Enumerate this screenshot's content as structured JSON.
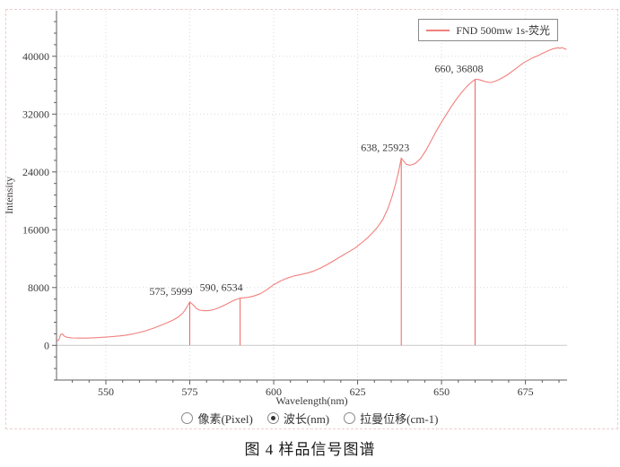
{
  "chart_data": {
    "type": "line",
    "title": "",
    "xlabel": "Wavelength(nm)",
    "ylabel": "Intensity",
    "xlim": [
      535.3,
      687.4
    ],
    "ylim": [
      -4800,
      46300
    ],
    "xticks": [
      550,
      575,
      600,
      625,
      650,
      675
    ],
    "yticks": [
      0,
      8000,
      16000,
      24000,
      32000,
      40000
    ],
    "x_minor_step": 5,
    "y_minor_step": 1600,
    "grid": true,
    "legend": {
      "position": "top-right",
      "entries": [
        {
          "label": "FND 500mw 1s-荧光",
          "color": "#f1807d"
        }
      ]
    },
    "series": [
      {
        "name": "FND 500mw 1s-荧光",
        "color": "#f1807d",
        "points": [
          [
            535.4,
            650
          ],
          [
            536,
            760
          ],
          [
            536.5,
            1480
          ],
          [
            537,
            1600
          ],
          [
            537.7,
            1250
          ],
          [
            538.5,
            1100
          ],
          [
            540,
            1030
          ],
          [
            542,
            1000
          ],
          [
            544,
            1010
          ],
          [
            546,
            1040
          ],
          [
            548,
            1080
          ],
          [
            550,
            1140
          ],
          [
            552,
            1210
          ],
          [
            554,
            1300
          ],
          [
            556,
            1420
          ],
          [
            558,
            1580
          ],
          [
            560,
            1780
          ],
          [
            562,
            2040
          ],
          [
            564,
            2350
          ],
          [
            566,
            2700
          ],
          [
            568,
            3080
          ],
          [
            570,
            3500
          ],
          [
            571.5,
            3900
          ],
          [
            573,
            4500
          ],
          [
            574,
            5200
          ],
          [
            575,
            5999
          ],
          [
            576,
            5600
          ],
          [
            577,
            5100
          ],
          [
            578,
            4870
          ],
          [
            579.5,
            4790
          ],
          [
            581,
            4830
          ],
          [
            582.5,
            5000
          ],
          [
            584,
            5280
          ],
          [
            585.5,
            5600
          ],
          [
            587,
            5950
          ],
          [
            588.5,
            6300
          ],
          [
            590,
            6534
          ],
          [
            591,
            6580
          ],
          [
            592.5,
            6650
          ],
          [
            594,
            6820
          ],
          [
            596,
            7150
          ],
          [
            598,
            7700
          ],
          [
            599,
            8050
          ],
          [
            600,
            8400
          ],
          [
            601,
            8650
          ],
          [
            602,
            8900
          ],
          [
            604,
            9300
          ],
          [
            606,
            9600
          ],
          [
            608,
            9800
          ],
          [
            610,
            10000
          ],
          [
            612,
            10300
          ],
          [
            614,
            10700
          ],
          [
            616,
            11200
          ],
          [
            618,
            11750
          ],
          [
            620,
            12300
          ],
          [
            622,
            12850
          ],
          [
            624,
            13400
          ],
          [
            625,
            13750
          ],
          [
            626.5,
            14300
          ],
          [
            628,
            14900
          ],
          [
            629.5,
            15600
          ],
          [
            631,
            16400
          ],
          [
            632.5,
            17400
          ],
          [
            634,
            18900
          ],
          [
            635.2,
            20500
          ],
          [
            636.3,
            22300
          ],
          [
            637.2,
            24000
          ],
          [
            638,
            25923
          ],
          [
            638.7,
            25500
          ],
          [
            639.5,
            25050
          ],
          [
            640.5,
            24930
          ],
          [
            641.5,
            25030
          ],
          [
            642.5,
            25280
          ],
          [
            644,
            26000
          ],
          [
            645.5,
            27100
          ],
          [
            647,
            28400
          ],
          [
            648.5,
            29700
          ],
          [
            650,
            30900
          ],
          [
            651.5,
            32000
          ],
          [
            653,
            33100
          ],
          [
            654.5,
            34100
          ],
          [
            656,
            35000
          ],
          [
            657.5,
            35800
          ],
          [
            659,
            36450
          ],
          [
            660,
            36808
          ],
          [
            661,
            36790
          ],
          [
            662,
            36650
          ],
          [
            663,
            36500
          ],
          [
            664,
            36400
          ],
          [
            664.8,
            36380
          ],
          [
            666,
            36550
          ],
          [
            667,
            36750
          ],
          [
            668,
            37000
          ],
          [
            669,
            37250
          ],
          [
            670,
            37550
          ],
          [
            671,
            37900
          ],
          [
            672,
            38250
          ],
          [
            673,
            38600
          ],
          [
            674,
            38950
          ],
          [
            675,
            39250
          ],
          [
            676,
            39500
          ],
          [
            677,
            39750
          ],
          [
            678,
            39950
          ],
          [
            679,
            40150
          ],
          [
            680,
            40400
          ],
          [
            681,
            40600
          ],
          [
            682,
            40800
          ],
          [
            683,
            41000
          ],
          [
            684,
            41120
          ],
          [
            684.7,
            41180
          ],
          [
            685.3,
            41120
          ],
          [
            686,
            41200
          ],
          [
            686.6,
            41050
          ],
          [
            687.2,
            40950
          ]
        ]
      }
    ],
    "annotations": [
      {
        "x": 575,
        "y": 5999,
        "label": "575, 5999"
      },
      {
        "x": 590,
        "y": 6534,
        "label": "590, 6534"
      },
      {
        "x": 638,
        "y": 25923,
        "label": "638, 25923"
      },
      {
        "x": 660,
        "y": 36808,
        "label": "660, 36808"
      }
    ],
    "dropline_color": "#ee6360",
    "colors": {
      "grid": "#d9d9d9",
      "zero_line": "#c9c9c9",
      "spine": "#5f5f5f",
      "tick_label": "#3a3a3a",
      "annotation": "#3a3a3a"
    }
  },
  "controls": {
    "radio_group": {
      "options": [
        {
          "label": "像素(Pixel)",
          "selected": false
        },
        {
          "label": "波长(nm)",
          "selected": true
        },
        {
          "label": "拉曼位移(cm-1)",
          "selected": false
        }
      ]
    }
  },
  "caption": "图 4 样品信号图谱"
}
